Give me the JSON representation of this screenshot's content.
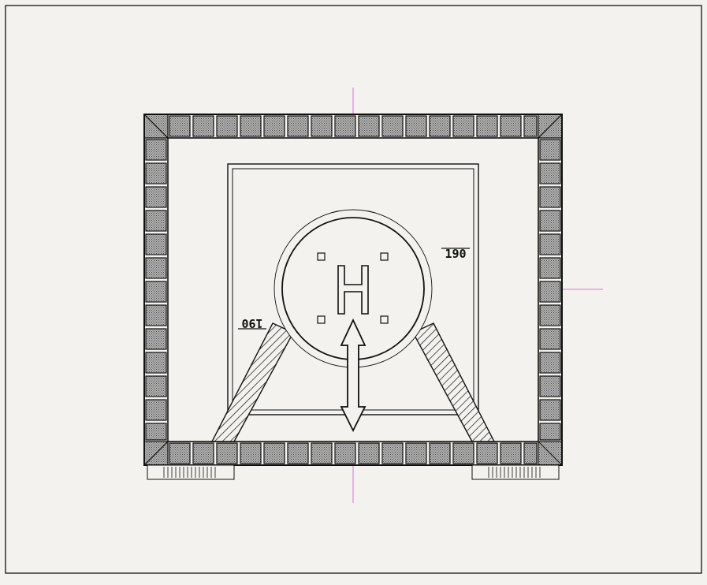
{
  "drawing": {
    "helipad_letter": "H",
    "heading_left": "190",
    "heading_right": "190",
    "colors": {
      "paper": "#f3f2ee",
      "ink": "#111111",
      "centerline": "#e070e0",
      "tile_fill": "#9a9a9a"
    },
    "icons": [
      "helipad-h-icon",
      "double-arrow-icon"
    ]
  }
}
